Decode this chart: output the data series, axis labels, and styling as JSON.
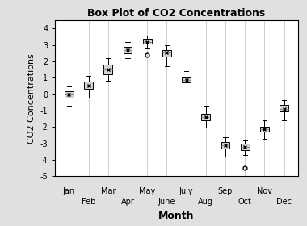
{
  "title": "Box Plot of CO2 Concentrations",
  "xlabel": "Month",
  "ylabel": "CO2 Concentrations",
  "months": [
    "Jan",
    "Feb",
    "Mar",
    "Apr",
    "May",
    "June",
    "July",
    "Aug",
    "Sep",
    "Oct",
    "Nov",
    "Dec"
  ],
  "x_positions": [
    1,
    2,
    3,
    4,
    5,
    6,
    7,
    8,
    9,
    10,
    11,
    12
  ],
  "box_stats": [
    {
      "med": 0.0,
      "q1": -0.2,
      "q3": 0.2,
      "whislo": -0.7,
      "whishi": 0.5,
      "mean": 0.0,
      "fliers": []
    },
    {
      "med": 0.55,
      "q1": 0.35,
      "q3": 0.75,
      "whislo": -0.2,
      "whishi": 1.1,
      "mean": 0.55,
      "fliers": []
    },
    {
      "med": 1.5,
      "q1": 1.2,
      "q3": 1.8,
      "whislo": 0.8,
      "whishi": 2.2,
      "mean": 1.5,
      "fliers": []
    },
    {
      "med": 2.7,
      "q1": 2.5,
      "q3": 2.9,
      "whislo": 2.2,
      "whishi": 3.2,
      "mean": 2.7,
      "fliers": []
    },
    {
      "med": 3.2,
      "q1": 3.1,
      "q3": 3.4,
      "whislo": 2.8,
      "whishi": 3.6,
      "mean": 3.2,
      "fliers": [
        2.4
      ]
    },
    {
      "med": 2.55,
      "q1": 2.3,
      "q3": 2.7,
      "whislo": 1.7,
      "whishi": 3.0,
      "mean": 2.55,
      "fliers": []
    },
    {
      "med": 0.85,
      "q1": 0.7,
      "q3": 1.0,
      "whislo": 0.3,
      "whishi": 1.4,
      "mean": 0.85,
      "fliers": []
    },
    {
      "med": -1.4,
      "q1": -1.6,
      "q3": -1.2,
      "whislo": -2.05,
      "whishi": -0.7,
      "mean": -1.4,
      "fliers": []
    },
    {
      "med": -3.1,
      "q1": -3.3,
      "q3": -2.9,
      "whislo": -3.8,
      "whishi": -2.6,
      "mean": -3.1,
      "fliers": []
    },
    {
      "med": -3.2,
      "q1": -3.4,
      "q3": -3.0,
      "whislo": -3.7,
      "whishi": -2.8,
      "mean": -3.2,
      "fliers": [
        -4.5
      ]
    },
    {
      "med": -2.15,
      "q1": -2.3,
      "q3": -2.0,
      "whislo": -2.7,
      "whishi": -1.6,
      "mean": -2.15,
      "fliers": []
    },
    {
      "med": -0.9,
      "q1": -1.05,
      "q3": -0.65,
      "whislo": -1.6,
      "whishi": -0.35,
      "mean": -0.9,
      "fliers": []
    }
  ],
  "ylim": [
    -5,
    4.5
  ],
  "yticks": [
    -5,
    -4,
    -3,
    -2,
    -1,
    0,
    1,
    2,
    3,
    4
  ],
  "box_color": "#d3d3d3",
  "median_color": "#888888",
  "mean_marker": "x",
  "whisker_color": "black",
  "cap_color": "black",
  "flier_marker": "o",
  "bg_color": "#e0e0e0",
  "plot_bg_color": "#ffffff",
  "title_fontsize": 9,
  "label_fontsize": 8,
  "axis_tick_fontsize": 7,
  "xlabel_fontsize": 9
}
